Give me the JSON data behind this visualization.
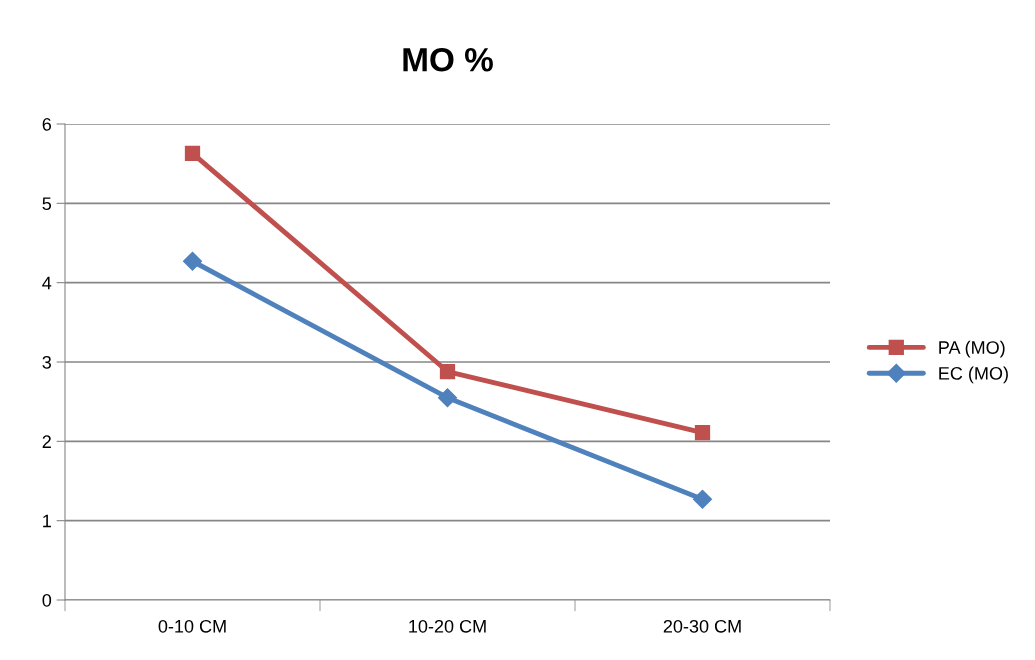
{
  "chart_data": {
    "type": "line",
    "title": "MO %",
    "categories": [
      "0-10 CM",
      "10-20 CM",
      "20-30 CM"
    ],
    "series": [
      {
        "name": "PA (MO)",
        "color": "#c0504d",
        "marker": "square",
        "values": [
          5.63,
          2.88,
          2.11
        ]
      },
      {
        "name": "EC (MO)",
        "color": "#4f81bd",
        "marker": "diamond",
        "values": [
          4.27,
          2.55,
          1.27
        ]
      }
    ],
    "ylim": [
      0,
      6
    ],
    "yticks": [
      0,
      1,
      2,
      3,
      4,
      5,
      6
    ],
    "grid": "y",
    "legend": "right",
    "line_style": "solid"
  }
}
